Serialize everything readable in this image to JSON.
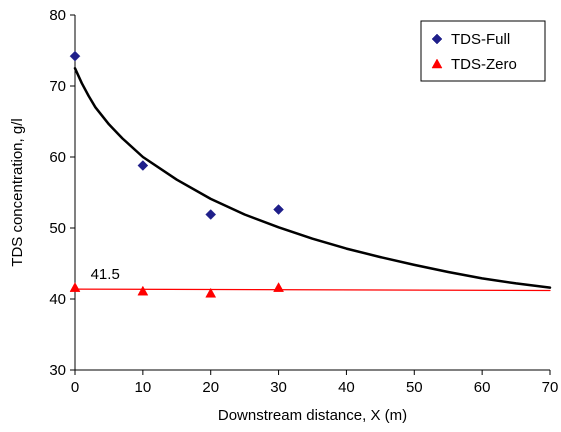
{
  "chart_data": {
    "type": "scatter",
    "xlabel": "Downstream distance, X (m)",
    "ylabel": "TDS concentration, g/l",
    "xlim": [
      0,
      70
    ],
    "ylim": [
      30,
      80
    ],
    "xticks": [
      "0",
      "10",
      "20",
      "30",
      "40",
      "50",
      "60",
      "70"
    ],
    "yticks": [
      "30",
      "40",
      "50",
      "60",
      "70",
      "80"
    ],
    "grid": false,
    "legend_position": "top-right",
    "series": [
      {
        "name": "TDS-Full",
        "marker": "diamond",
        "color": "#1f1f8a",
        "x": [
          0,
          10,
          20,
          30
        ],
        "y": [
          74.2,
          58.8,
          51.9,
          52.6
        ]
      },
      {
        "name": "TDS-Zero",
        "marker": "triangle",
        "color": "#ff0000",
        "x": [
          0,
          10,
          20,
          30
        ],
        "y": [
          41.6,
          41.1,
          40.8,
          41.6
        ]
      }
    ],
    "fit_lines": [
      {
        "type": "power-decay",
        "color": "#000000",
        "x": [
          0,
          1,
          2,
          3,
          5,
          7,
          10,
          15,
          20,
          25,
          30,
          35,
          40,
          45,
          50,
          55,
          60,
          65,
          70
        ],
        "y": [
          72.5,
          70.4,
          68.6,
          67.0,
          64.6,
          62.6,
          60.0,
          56.8,
          54.1,
          51.9,
          50.1,
          48.5,
          47.1,
          45.9,
          44.8,
          43.8,
          42.9,
          42.2,
          41.6
        ]
      },
      {
        "type": "linear",
        "color": "#ff0000",
        "x": [
          0,
          70
        ],
        "y": [
          41.4,
          41.2
        ]
      }
    ],
    "annotations": [
      {
        "text": "41.5",
        "x": 2.3,
        "y": 42.8
      }
    ]
  }
}
